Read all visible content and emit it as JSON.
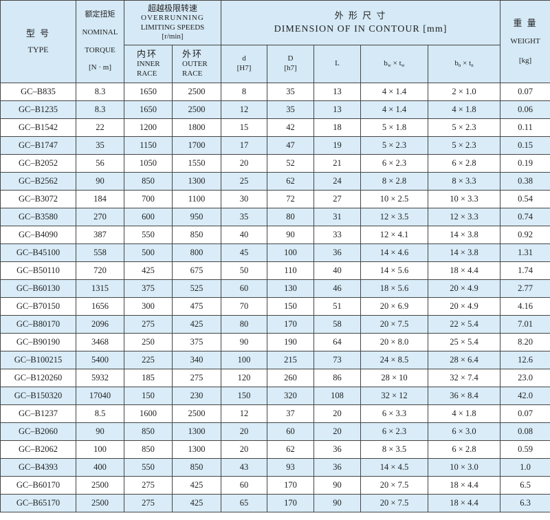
{
  "header": {
    "type_cn": "型 号",
    "type_en": "TYPE",
    "torque_cn": "额定扭矩",
    "torque_en1": "NOMINAL",
    "torque_en2": "TORQUE",
    "torque_unit": "[N · m]",
    "speed_cn": "超越极限转速",
    "speed_en1": "OVERRUNNING",
    "speed_en2": "LIMITING SPEEDS",
    "speed_unit": "[r/min]",
    "inner_cn": "内环",
    "inner_en1": "INNER",
    "inner_en2": "RACE",
    "outer_cn": "外环",
    "outer_en1": "OUTER",
    "outer_en2": "RACE",
    "dim_cn": "外 形 尺 寸",
    "dim_en": "DIMENSION OF IN CONTOUR [mm]",
    "d": "d",
    "d_tol": "[H7]",
    "D": "D",
    "D_tol": "[h7]",
    "L": "L",
    "bw_b": "b",
    "bw_sub": "w",
    "bw_x": " × t",
    "tw_sub": "w",
    "bn_b": "b",
    "bn_sub": "n",
    "bn_x": " × t",
    "tn_sub": "n",
    "weight_cn": "重 量",
    "weight_en": "WEIGHT",
    "weight_unit": "[kg]"
  },
  "colors": {
    "header_bg": "#d5e9f6",
    "alt_row_bg": "#d9ecf8",
    "border": "#444444"
  },
  "rows": [
    [
      "GC–B835",
      "8.3",
      "1650",
      "2500",
      "8",
      "35",
      "13",
      "4 × 1.4",
      "2 × 1.0",
      "0.07"
    ],
    [
      "GC–B1235",
      "8.3",
      "1650",
      "2500",
      "12",
      "35",
      "13",
      "4 × 1.4",
      "4 × 1.8",
      "0.06"
    ],
    [
      "GC–B1542",
      "22",
      "1200",
      "1800",
      "15",
      "42",
      "18",
      "5 × 1.8",
      "5 × 2.3",
      "0.11"
    ],
    [
      "GC–B1747",
      "35",
      "1150",
      "1700",
      "17",
      "47",
      "19",
      "5 × 2.3",
      "5 × 2.3",
      "0.15"
    ],
    [
      "GC–B2052",
      "56",
      "1050",
      "1550",
      "20",
      "52",
      "21",
      "6 × 2.3",
      "6 × 2.8",
      "0.19"
    ],
    [
      "GC–B2562",
      "90",
      "850",
      "1300",
      "25",
      "62",
      "24",
      "8 × 2.8",
      "8 × 3.3",
      "0.38"
    ],
    [
      "GC–B3072",
      "184",
      "700",
      "1100",
      "30",
      "72",
      "27",
      "10 × 2.5",
      "10 × 3.3",
      "0.54"
    ],
    [
      "GC–B3580",
      "270",
      "600",
      "950",
      "35",
      "80",
      "31",
      "12 × 3.5",
      "12 × 3.3",
      "0.74"
    ],
    [
      "GC–B4090",
      "387",
      "550",
      "850",
      "40",
      "90",
      "33",
      "12 × 4.1",
      "14 × 3.8",
      "0.92"
    ],
    [
      "GC–B45100",
      "558",
      "500",
      "800",
      "45",
      "100",
      "36",
      "14 × 4.6",
      "14 × 3.8",
      "1.31"
    ],
    [
      "GC–B50110",
      "720",
      "425",
      "675",
      "50",
      "110",
      "40",
      "14 × 5.6",
      "18 × 4.4",
      "1.74"
    ],
    [
      "GC–B60130",
      "1315",
      "375",
      "525",
      "60",
      "130",
      "46",
      "18 × 5.6",
      "20 × 4.9",
      "2.77"
    ],
    [
      "GC–B70150",
      "1656",
      "300",
      "475",
      "70",
      "150",
      "51",
      "20 × 6.9",
      "20 × 4.9",
      "4.16"
    ],
    [
      "GC–B80170",
      "2096",
      "275",
      "425",
      "80",
      "170",
      "58",
      "20 × 7.5",
      "22 × 5.4",
      "7.01"
    ],
    [
      "GC–B90190",
      "3468",
      "250",
      "375",
      "90",
      "190",
      "64",
      "20 × 8.0",
      "25 × 5.4",
      "8.20"
    ],
    [
      "GC–B100215",
      "5400",
      "225",
      "340",
      "100",
      "215",
      "73",
      "24 × 8.5",
      "28 × 6.4",
      "12.6"
    ],
    [
      "GC–B120260",
      "5932",
      "185",
      "275",
      "120",
      "260",
      "86",
      "28 × 10",
      "32 × 7.4",
      "23.0"
    ],
    [
      "GC–B150320",
      "17040",
      "150",
      "230",
      "150",
      "320",
      "108",
      "32 × 12",
      "36 × 8.4",
      "42.0"
    ],
    [
      "GC–B1237",
      "8.5",
      "1600",
      "2500",
      "12",
      "37",
      "20",
      "6 × 3.3",
      "4 × 1.8",
      "0.07"
    ],
    [
      "GC–B2060",
      "90",
      "850",
      "1300",
      "20",
      "60",
      "20",
      "6 × 2.3",
      "6 × 3.0",
      "0.08"
    ],
    [
      "GC–B2062",
      "100",
      "850",
      "1300",
      "20",
      "62",
      "36",
      "8 × 3.5",
      "6 × 2.8",
      "0.59"
    ],
    [
      "GC–B4393",
      "400",
      "550",
      "850",
      "43",
      "93",
      "36",
      "14 × 4.5",
      "10 × 3.0",
      "1.0"
    ],
    [
      "GC–B60170",
      "2500",
      "275",
      "425",
      "60",
      "170",
      "90",
      "20 × 7.5",
      "18 × 4.4",
      "6.5"
    ],
    [
      "GC–B65170",
      "2500",
      "275",
      "425",
      "65",
      "170",
      "90",
      "20 × 7.5",
      "18 × 4.4",
      "6.3"
    ]
  ]
}
